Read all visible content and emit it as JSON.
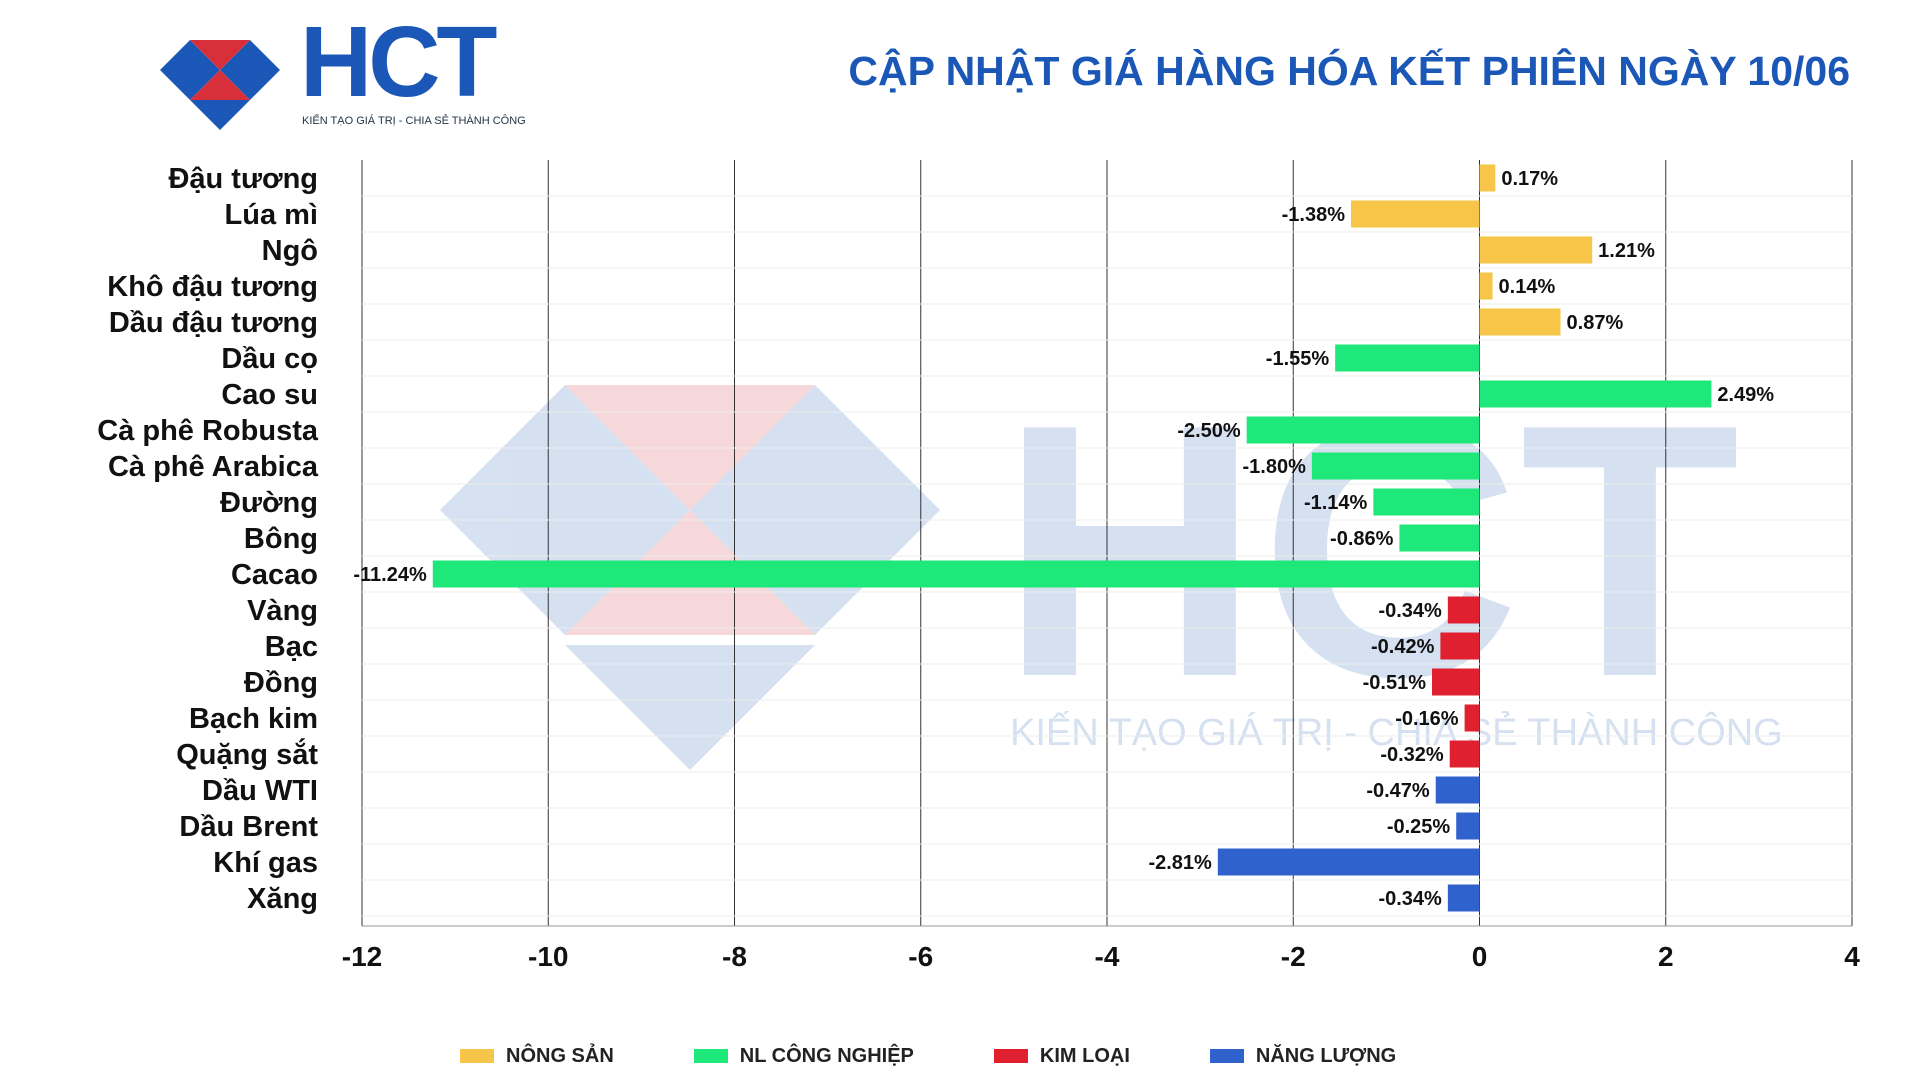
{
  "header": {
    "logo_text": "HCT",
    "logo_tagline": "KIẾN TẠO GIÁ TRỊ - CHIA SẺ THÀNH CÔNG",
    "title": "CẬP NHẬT GIÁ HÀNG HÓA KẾT PHIÊN NGÀY 10/06"
  },
  "watermark": {
    "text": "HCT",
    "tagline": "KIẾN TẠO GIÁ TRỊ - CHIA SẺ THÀNH CÔNG"
  },
  "colors": {
    "brand_blue": "#1b57b7",
    "brand_red": "#d8303a",
    "nong_san": "#f7c548",
    "nl_cong_nghiep": "#1fe87a",
    "kim_loai": "#e0202e",
    "nang_luong": "#2f62cc"
  },
  "chart_data": {
    "type": "bar",
    "orientation": "horizontal",
    "title": "CẬP NHẬT GIÁ HÀNG HÓA KẾT PHIÊN NGÀY 10/06",
    "xlabel": "",
    "ylabel": "",
    "xlim": [
      -12,
      4
    ],
    "xticks": [
      -12,
      -10,
      -8,
      -6,
      -4,
      -2,
      0,
      2,
      4
    ],
    "grid": "vertical",
    "legend_position": "bottom",
    "categories": [
      "Đậu tương",
      "Lúa mì",
      "Ngô",
      "Khô đậu tương",
      "Dầu đậu tương",
      "Dầu cọ",
      "Cao su",
      "Cà phê Robusta",
      "Cà phê Arabica",
      "Đường",
      "Bông",
      "Cacao",
      "Vàng",
      "Bạc",
      "Đồng",
      "Bạch kim",
      "Quặng sắt",
      "Dầu WTI",
      "Dầu Brent",
      "Khí gas",
      "Xăng"
    ],
    "values": [
      0.17,
      -1.38,
      1.21,
      0.14,
      0.87,
      -1.55,
      2.49,
      -2.5,
      -1.8,
      -1.14,
      -0.86,
      -11.24,
      -0.34,
      -0.42,
      -0.51,
      -0.16,
      -0.32,
      -0.47,
      -0.25,
      -2.81,
      -0.34
    ],
    "value_labels": [
      "0.17%",
      "-1.38%",
      "1.21%",
      "0.14%",
      "0.87%",
      "-1.55%",
      "2.49%",
      "-2.50%",
      "-1.80%",
      "-1.14%",
      "-0.86%",
      "-11.24%",
      "-0.34%",
      "-0.42%",
      "-0.51%",
      "-0.16%",
      "-0.32%",
      "-0.47%",
      "-0.25%",
      "-2.81%",
      "-0.34%"
    ],
    "groups": [
      0,
      0,
      0,
      0,
      0,
      1,
      1,
      1,
      1,
      1,
      1,
      1,
      2,
      2,
      2,
      2,
      2,
      3,
      3,
      3,
      3
    ],
    "series": [
      {
        "name": "NÔNG SẢN",
        "color": "#f7c548"
      },
      {
        "name": "NL CÔNG NGHIỆP",
        "color": "#1fe87a"
      },
      {
        "name": "KIM LOẠI",
        "color": "#e0202e"
      },
      {
        "name": "NĂNG LƯỢNG",
        "color": "#2f62cc"
      }
    ]
  }
}
